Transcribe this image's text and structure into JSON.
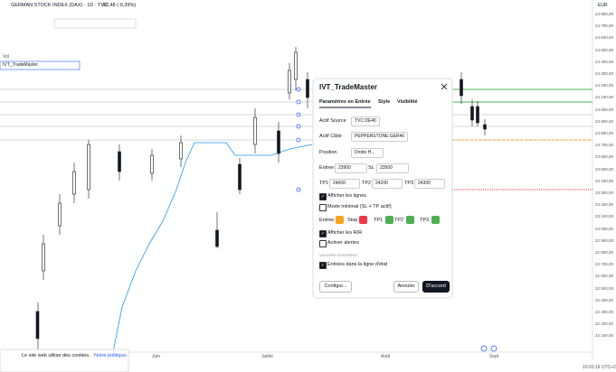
{
  "header": {
    "symbol": "GERMAN STOCK INDEX (DAX) · 1D · TVC",
    "change": "-92,48 (-0,39%)",
    "currency": "EUR"
  },
  "indicators": [
    "Vol",
    "IVT_TradeMaster"
  ],
  "price_axis": [
    "24 800,00",
    "24 700,00",
    "24 600,00",
    "24 500,00",
    "24 400,00",
    "24 300,00",
    "24 200,00",
    "24 100,00",
    "24 000,00",
    "23 900,00",
    "23 800,00",
    "23 700,00",
    "23 600,00",
    "23 500,00",
    "23 400,00",
    "23 300,00",
    "23 200,00",
    "23 100,00",
    "23 000,00",
    "22 900,00",
    "22 800,00",
    "22 700,00",
    "22 600,00",
    "22 500,00",
    "22 400,00",
    "22 300,00",
    "22 200,00",
    "22 100,00"
  ],
  "time_axis": [
    "Juin",
    "Juillet",
    "Août",
    "Sept"
  ],
  "dialog": {
    "title": "IVT_TradeMaster",
    "tabs": [
      "Paramètres en Entrée",
      "Style",
      "Visibilité"
    ],
    "source_label": "Actif Source",
    "source_value": "TVC:DE40",
    "target_label": "Actif Cible",
    "target_value": "PEPPERSTONE:GER40",
    "position_label": "Position",
    "position_value": "Droite H...",
    "entry_label": "Entree",
    "entry_value": "23900",
    "sl_label": "SL",
    "sl_value": "23500",
    "tps": [
      {
        "label": "TP1",
        "value": "24000"
      },
      {
        "label": "TP2",
        "value": "24200"
      },
      {
        "label": "TP3",
        "value": "24300"
      }
    ],
    "checkboxes_top": [
      {
        "label": "Afficher les lignes",
        "checked": true
      },
      {
        "label": "Mode minimal (SL + TP actif)",
        "checked": false
      }
    ],
    "colors": [
      {
        "label": "Entrée",
        "color": "#f7a21b"
      },
      {
        "label": "Stop",
        "color": "#f23645"
      },
      {
        "label": "TP1",
        "color": "#4caf50"
      },
      {
        "label": "TP2",
        "color": "#4caf50"
      },
      {
        "label": "TP3",
        "color": "#4caf50"
      }
    ],
    "checkboxes_mid": [
      {
        "label": "Afficher les R/R",
        "checked": true
      },
      {
        "label": "Activer alertes",
        "checked": false
      }
    ],
    "section": "VALEURS D'ENTRÉES",
    "checkboxes_bottom": [
      {
        "label": "Entrées dans la ligne d'état",
        "checked": true
      }
    ],
    "template": "Configur...",
    "cancel": "Annuler",
    "ok": "D'accord"
  },
  "cookie": {
    "text": "Le site web utilise des cookies.",
    "link": "Notre politique."
  },
  "clock": "10:03:19 UTC+2"
}
